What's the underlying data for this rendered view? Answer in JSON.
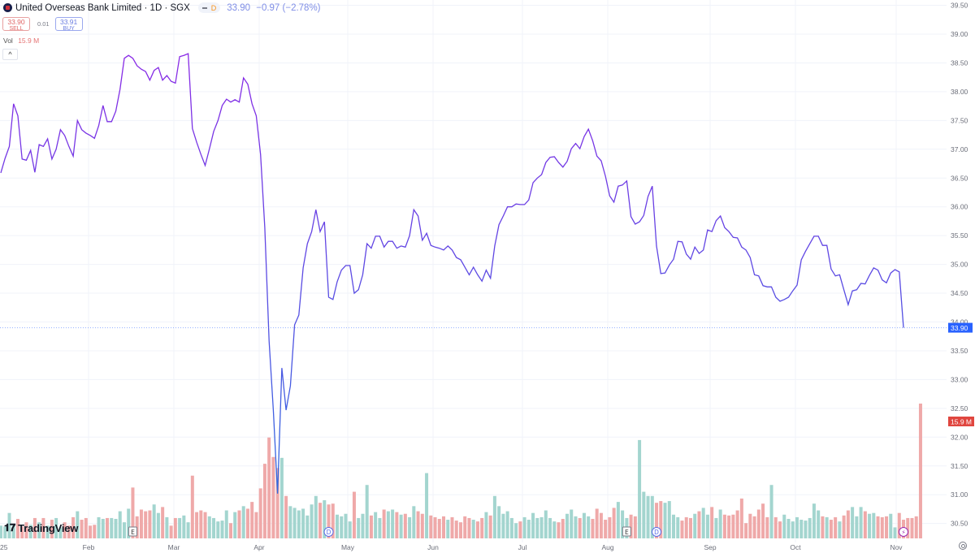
{
  "header": {
    "title": "United Overseas Bank Limited · 1D · SGX",
    "interval_badge": "D",
    "last_price": "33.90",
    "change": "−0.97 (−2.78%)",
    "sell_price": "33.90",
    "sell_label": "SELL",
    "spread": "0.01",
    "buy_price": "33.91",
    "buy_label": "BUY",
    "vol_label": "Vol",
    "vol_value": "15.9 M",
    "collapse_glyph": "^"
  },
  "branding": {
    "logo_text": "TradingView"
  },
  "chart_data": {
    "type": "line",
    "colors": {
      "line_top": "#8a28e6",
      "line_bottom": "#2f6be0",
      "up_volume": "#a3d5cf",
      "down_volume": "#efa9a9",
      "price_tag": "#2962ff",
      "volume_tag": "#e0463f"
    },
    "x_tick_labels": [
      "25",
      "Feb",
      "Mar",
      "Apr",
      "May",
      "Jun",
      "Jul",
      "Aug",
      "Sep",
      "Oct",
      "Nov"
    ],
    "y_ticks": [
      "39.50",
      "39.00",
      "38.50",
      "38.00",
      "37.50",
      "37.00",
      "36.50",
      "36.00",
      "35.50",
      "35.00",
      "34.50",
      "34.00",
      "33.50",
      "33.00",
      "32.50",
      "32.00",
      "31.50",
      "31.00",
      "30.50"
    ],
    "ylim": [
      30.4,
      39.6
    ],
    "last_price_label": "33.90",
    "last_volume_label": "15.9 M",
    "grid": true,
    "closes": [
      36.59,
      36.84,
      37.05,
      37.79,
      37.58,
      36.83,
      36.81,
      36.98,
      36.6,
      37.08,
      37.05,
      37.18,
      36.83,
      37.0,
      37.34,
      37.24,
      37.05,
      36.88,
      37.5,
      37.34,
      37.28,
      37.24,
      37.19,
      37.41,
      37.76,
      37.48,
      37.48,
      37.66,
      38.04,
      38.58,
      38.63,
      38.58,
      38.45,
      38.39,
      38.35,
      38.2,
      38.37,
      38.42,
      38.2,
      38.28,
      38.18,
      38.15,
      38.61,
      38.63,
      38.66,
      37.36,
      37.12,
      36.91,
      36.72,
      37.01,
      37.31,
      37.5,
      37.76,
      37.87,
      37.82,
      37.86,
      37.82,
      38.24,
      38.13,
      37.79,
      37.58,
      36.91,
      35.64,
      33.67,
      32.47,
      31.02,
      33.2,
      32.47,
      32.89,
      33.95,
      34.12,
      34.94,
      35.36,
      35.57,
      35.95,
      35.57,
      35.74,
      34.43,
      34.39,
      34.7,
      34.9,
      34.98,
      34.98,
      34.5,
      34.56,
      34.82,
      35.36,
      35.28,
      35.49,
      35.49,
      35.3,
      35.4,
      35.4,
      35.28,
      35.32,
      35.3,
      35.5,
      35.95,
      35.84,
      35.42,
      35.54,
      35.33,
      35.3,
      35.28,
      35.25,
      35.32,
      35.25,
      35.12,
      35.08,
      34.95,
      34.82,
      34.95,
      34.82,
      34.71,
      34.9,
      34.76,
      35.32,
      35.69,
      35.84,
      36.0,
      36.0,
      36.05,
      36.04,
      36.04,
      36.12,
      36.42,
      36.5,
      36.56,
      36.77,
      36.86,
      36.87,
      36.77,
      36.69,
      36.79,
      37.01,
      37.1,
      37.01,
      37.22,
      37.35,
      37.15,
      36.88,
      36.8,
      36.53,
      36.19,
      36.08,
      36.36,
      36.38,
      36.45,
      35.83,
      35.7,
      35.74,
      35.85,
      36.18,
      36.36,
      35.32,
      34.84,
      34.85,
      34.99,
      35.09,
      35.4,
      35.39,
      35.18,
      35.09,
      35.3,
      35.19,
      35.25,
      35.6,
      35.57,
      35.76,
      35.84,
      35.64,
      35.57,
      35.47,
      35.46,
      35.3,
      35.25,
      35.12,
      34.82,
      34.8,
      34.63,
      34.61,
      34.61,
      34.43,
      34.36,
      34.39,
      34.43,
      34.54,
      34.64,
      35.08,
      35.23,
      35.36,
      35.49,
      35.49,
      35.33,
      35.33,
      34.92,
      34.8,
      34.82,
      34.56,
      34.3,
      34.54,
      34.56,
      34.67,
      34.66,
      34.81,
      34.94,
      34.9,
      34.73,
      34.68,
      34.85,
      34.91,
      34.87,
      33.9
    ],
    "volumes_millions": [
      1.5,
      1.4,
      3.0,
      1.6,
      2.3,
      1.4,
      1.9,
      1.6,
      2.4,
      1.9,
      2.4,
      1.5,
      2.2,
      2.4,
      1.3,
      1.9,
      1.5,
      2.5,
      3.2,
      2.2,
      2.4,
      1.5,
      1.6,
      2.5,
      2.3,
      2.4,
      2.4,
      2.3,
      3.2,
      1.9,
      3.5,
      6.0,
      2.6,
      3.4,
      3.2,
      3.3,
      4.0,
      3.0,
      3.7,
      2.5,
      1.5,
      2.4,
      2.4,
      2.7,
      1.9,
      7.4,
      3.1,
      3.3,
      3.1,
      2.6,
      2.4,
      2.0,
      2.1,
      3.3,
      1.8,
      3.1,
      3.3,
      3.8,
      3.5,
      4.3,
      3.1,
      5.9,
      8.8,
      11.9,
      9.6,
      8.3,
      9.5,
      5.0,
      3.8,
      3.6,
      3.3,
      3.5,
      2.7,
      4.0,
      5.0,
      4.2,
      4.5,
      4.0,
      4.1,
      2.8,
      2.6,
      2.9,
      2.0,
      5.5,
      2.4,
      2.9,
      6.3,
      2.7,
      3.1,
      2.4,
      3.4,
      3.2,
      3.4,
      3.1,
      2.8,
      2.9,
      2.5,
      3.8,
      3.2,
      2.9,
      7.7,
      2.7,
      2.5,
      2.3,
      2.6,
      2.2,
      2.5,
      2.1,
      1.9,
      2.6,
      2.4,
      2.2,
      2.0,
      2.4,
      3.1,
      2.7,
      5.0,
      3.8,
      2.9,
      3.2,
      2.4,
      1.8,
      2.0,
      2.5,
      2.2,
      3.0,
      2.4,
      2.5,
      3.3,
      2.4,
      2.0,
      1.9,
      2.3,
      2.9,
      3.4,
      2.6,
      2.4,
      3.0,
      2.6,
      2.3,
      3.5,
      3.0,
      2.2,
      2.5,
      3.6,
      4.3,
      3.3,
      2.4,
      2.8,
      2.6,
      11.6,
      5.5,
      5.0,
      5.0,
      4.2,
      4.4,
      4.2,
      4.4,
      2.8,
      2.5,
      2.1,
      2.5,
      2.4,
      2.9,
      3.2,
      3.6,
      2.8,
      3.7,
      2.4,
      3.4,
      2.8,
      2.7,
      2.8,
      3.3,
      4.7,
      1.8,
      2.9,
      2.6,
      3.4,
      4.1,
      2.5,
      6.3,
      2.5,
      2.0,
      2.8,
      2.3,
      2.0,
      2.5,
      2.2,
      2.1,
      2.4,
      4.1,
      3.3,
      2.6,
      2.5,
      2.2,
      2.5,
      2.0,
      2.7,
      3.3,
      3.7,
      2.6,
      3.7,
      3.2,
      2.9,
      3.0,
      2.6,
      2.5,
      2.6,
      2.9,
      1.3,
      3.0,
      2.2,
      2.4,
      2.4,
      2.6,
      15.9
    ],
    "event_markers": [
      {
        "type": "earnings",
        "label": "E",
        "index": 31
      },
      {
        "type": "dividend",
        "label": "D",
        "index": 77
      },
      {
        "type": "earnings",
        "label": "E",
        "index": 147
      },
      {
        "type": "dividend",
        "label": "D",
        "index": 154
      },
      {
        "type": "split-flash",
        "label": "⚡",
        "index": 212
      }
    ]
  }
}
